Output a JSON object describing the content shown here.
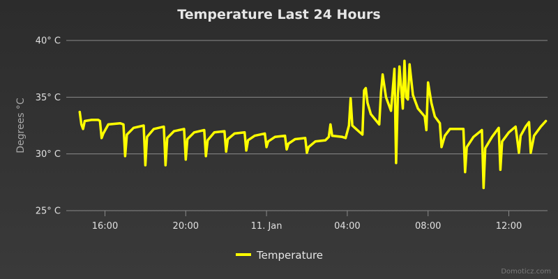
{
  "chart_data": {
    "type": "line",
    "title": "Temperature Last 24 Hours",
    "ylabel": "Degrees °C",
    "ylim": [
      25,
      40
    ],
    "yticks": [
      {
        "value": 25,
        "label": "25° C"
      },
      {
        "value": 30,
        "label": "30° C"
      },
      {
        "value": 35,
        "label": "35° C"
      },
      {
        "value": 40,
        "label": "40° C"
      }
    ],
    "xlim": [
      "2024-01-10T14:05",
      "2024-01-11T13:55"
    ],
    "xticks": [
      {
        "value": "2024-01-10T16:00",
        "label": "16:00"
      },
      {
        "value": "2024-01-10T20:00",
        "label": "20:00"
      },
      {
        "value": "2024-01-11T00:00",
        "label": "11. Jan"
      },
      {
        "value": "2024-01-11T04:00",
        "label": "04:00"
      },
      {
        "value": "2024-01-11T08:00",
        "label": "08:00"
      },
      {
        "value": "2024-01-11T12:00",
        "label": "12:00"
      }
    ],
    "grid": true,
    "legend": "bottom-center",
    "series": [
      {
        "name": "Temperature",
        "color": "#ffff00",
        "points": [
          [
            "2024-01-10T14:45",
            33.7
          ],
          [
            "2024-01-10T14:50",
            32.6
          ],
          [
            "2024-01-10T14:55",
            32.2
          ],
          [
            "2024-01-10T15:00",
            32.9
          ],
          [
            "2024-01-10T15:20",
            33.0
          ],
          [
            "2024-01-10T15:40",
            33.0
          ],
          [
            "2024-01-10T15:45",
            32.9
          ],
          [
            "2024-01-10T15:50",
            31.4
          ],
          [
            "2024-01-10T15:55",
            31.8
          ],
          [
            "2024-01-10T16:10",
            32.6
          ],
          [
            "2024-01-10T16:45",
            32.7
          ],
          [
            "2024-01-10T16:55",
            32.6
          ],
          [
            "2024-01-10T17:00",
            29.8
          ],
          [
            "2024-01-10T17:05",
            31.7
          ],
          [
            "2024-01-10T17:25",
            32.3
          ],
          [
            "2024-01-10T17:55",
            32.5
          ],
          [
            "2024-01-10T18:00",
            29.0
          ],
          [
            "2024-01-10T18:05",
            31.5
          ],
          [
            "2024-01-10T18:25",
            32.2
          ],
          [
            "2024-01-10T18:55",
            32.4
          ],
          [
            "2024-01-10T19:00",
            29.0
          ],
          [
            "2024-01-10T19:05",
            31.4
          ],
          [
            "2024-01-10T19:25",
            32.0
          ],
          [
            "2024-01-10T19:55",
            32.2
          ],
          [
            "2024-01-10T20:00",
            29.5
          ],
          [
            "2024-01-10T20:05",
            31.3
          ],
          [
            "2024-01-10T20:25",
            31.9
          ],
          [
            "2024-01-10T20:55",
            32.1
          ],
          [
            "2024-01-10T21:00",
            29.8
          ],
          [
            "2024-01-10T21:05",
            31.2
          ],
          [
            "2024-01-10T21:25",
            31.9
          ],
          [
            "2024-01-10T21:55",
            32.0
          ],
          [
            "2024-01-10T22:00",
            30.2
          ],
          [
            "2024-01-10T22:05",
            31.3
          ],
          [
            "2024-01-10T22:25",
            31.8
          ],
          [
            "2024-01-10T22:55",
            31.9
          ],
          [
            "2024-01-10T23:00",
            30.3
          ],
          [
            "2024-01-10T23:05",
            31.2
          ],
          [
            "2024-01-10T23:25",
            31.6
          ],
          [
            "2024-01-10T23:55",
            31.8
          ],
          [
            "2024-01-11T00:00",
            30.6
          ],
          [
            "2024-01-11T00:05",
            31.1
          ],
          [
            "2024-01-11T00:25",
            31.5
          ],
          [
            "2024-01-11T00:55",
            31.6
          ],
          [
            "2024-01-11T01:00",
            30.4
          ],
          [
            "2024-01-11T01:05",
            30.9
          ],
          [
            "2024-01-11T01:25",
            31.3
          ],
          [
            "2024-01-11T01:55",
            31.4
          ],
          [
            "2024-01-11T02:00",
            30.1
          ],
          [
            "2024-01-11T02:05",
            30.6
          ],
          [
            "2024-01-11T02:25",
            31.1
          ],
          [
            "2024-01-11T02:55",
            31.2
          ],
          [
            "2024-01-11T03:05",
            31.5
          ],
          [
            "2024-01-11T03:10",
            32.6
          ],
          [
            "2024-01-11T03:15",
            31.6
          ],
          [
            "2024-01-11T03:45",
            31.5
          ],
          [
            "2024-01-11T03:55",
            31.4
          ],
          [
            "2024-01-11T04:05",
            32.5
          ],
          [
            "2024-01-11T04:10",
            34.9
          ],
          [
            "2024-01-11T04:15",
            32.5
          ],
          [
            "2024-01-11T04:45",
            31.7
          ],
          [
            "2024-01-11T04:50",
            35.6
          ],
          [
            "2024-01-11T04:55",
            35.8
          ],
          [
            "2024-01-11T05:00",
            34.5
          ],
          [
            "2024-01-11T05:10",
            33.5
          ],
          [
            "2024-01-11T05:35",
            32.6
          ],
          [
            "2024-01-11T05:40",
            35.4
          ],
          [
            "2024-01-11T05:45",
            37.0
          ],
          [
            "2024-01-11T05:55",
            35.0
          ],
          [
            "2024-01-11T06:10",
            33.8
          ],
          [
            "2024-01-11T06:20",
            37.5
          ],
          [
            "2024-01-11T06:25",
            29.2
          ],
          [
            "2024-01-11T06:30",
            35.0
          ],
          [
            "2024-01-11T06:35",
            37.7
          ],
          [
            "2024-01-11T06:45",
            34.0
          ],
          [
            "2024-01-11T06:50",
            38.2
          ],
          [
            "2024-01-11T06:55",
            35.0
          ],
          [
            "2024-01-11T07:00",
            34.8
          ],
          [
            "2024-01-11T07:05",
            37.9
          ],
          [
            "2024-01-11T07:15",
            35.2
          ],
          [
            "2024-01-11T07:30",
            34.0
          ],
          [
            "2024-01-11T07:50",
            33.3
          ],
          [
            "2024-01-11T07:55",
            32.1
          ],
          [
            "2024-01-11T08:00",
            36.3
          ],
          [
            "2024-01-11T08:10",
            34.5
          ],
          [
            "2024-01-11T08:20",
            33.3
          ],
          [
            "2024-01-11T08:35",
            32.7
          ],
          [
            "2024-01-11T08:40",
            30.6
          ],
          [
            "2024-01-11T08:50",
            31.6
          ],
          [
            "2024-01-11T09:05",
            32.2
          ],
          [
            "2024-01-11T09:45",
            32.2
          ],
          [
            "2024-01-11T09:50",
            28.4
          ],
          [
            "2024-01-11T09:55",
            30.6
          ],
          [
            "2024-01-11T10:15",
            31.5
          ],
          [
            "2024-01-11T10:40",
            32.1
          ],
          [
            "2024-01-11T10:45",
            27.0
          ],
          [
            "2024-01-11T10:50",
            30.5
          ],
          [
            "2024-01-11T11:10",
            31.5
          ],
          [
            "2024-01-11T11:30",
            32.3
          ],
          [
            "2024-01-11T11:35",
            28.6
          ],
          [
            "2024-01-11T11:40",
            31.1
          ],
          [
            "2024-01-11T12:00",
            31.9
          ],
          [
            "2024-01-11T12:20",
            32.4
          ],
          [
            "2024-01-11T12:30",
            30.1
          ],
          [
            "2024-01-11T12:35",
            31.6
          ],
          [
            "2024-01-11T12:50",
            32.4
          ],
          [
            "2024-01-11T13:00",
            32.8
          ],
          [
            "2024-01-11T13:05",
            30.1
          ],
          [
            "2024-01-11T13:15",
            31.6
          ],
          [
            "2024-01-11T13:35",
            32.4
          ],
          [
            "2024-01-11T13:50",
            32.9
          ]
        ]
      }
    ]
  },
  "credit": "Domoticz.com"
}
